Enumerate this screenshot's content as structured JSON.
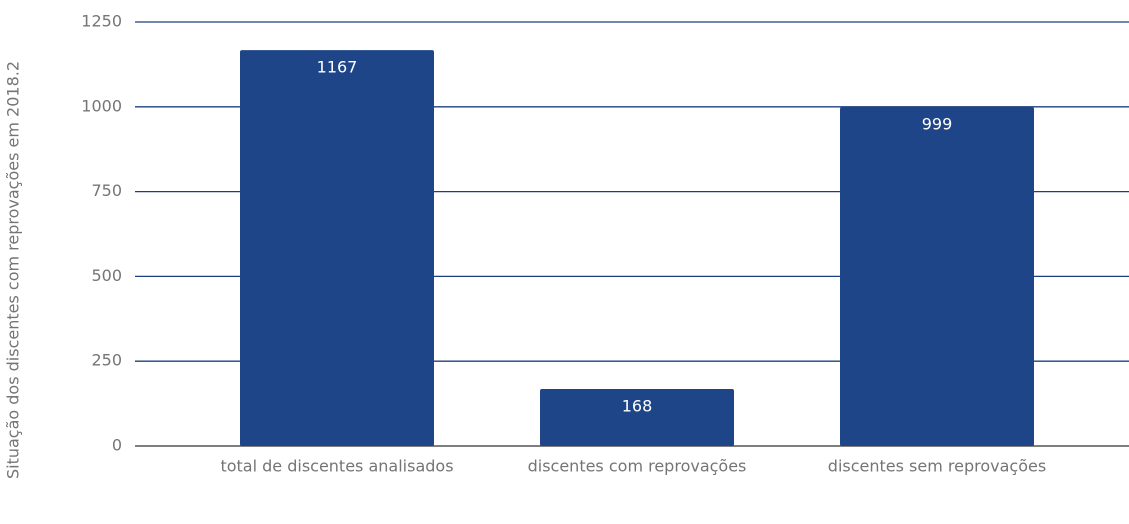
{
  "chart_data": {
    "type": "bar",
    "y_axis_label": "Situação dos discentes com  reprovações em 2018.2",
    "categories": [
      "total de discentes analisados",
      "discentes com reprovações",
      "discentes sem reprovações"
    ],
    "values": [
      1167,
      168,
      999
    ],
    "color": "#1e4588",
    "ylim": [
      0,
      1250
    ],
    "yticks": [
      0,
      250,
      500,
      750,
      1000,
      1250
    ],
    "grid": true
  }
}
